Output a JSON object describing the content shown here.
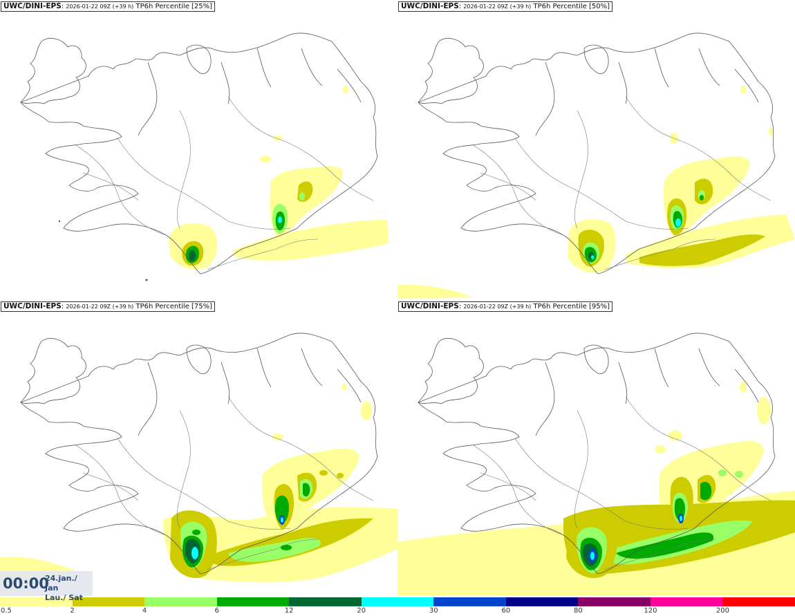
{
  "panels": [
    {
      "model": "UWC/DINI-EPS",
      "run": "2026-01-22 09Z (+39 h)",
      "field": "TP6h Percentile [25%]"
    },
    {
      "model": "UWC/DINI-EPS",
      "run": "2026-01-22 09Z (+39 h)",
      "field": "TP6h Percentile [50%]"
    },
    {
      "model": "UWC/DINI-EPS",
      "run": "2026-01-22 09Z (+39 h)",
      "field": "TP6h Percentile [75%]"
    },
    {
      "model": "UWC/DINI-EPS",
      "run": "2026-01-22 09Z (+39 h)",
      "field": "TP6h Percentile [95%]"
    }
  ],
  "valid_time": {
    "time": "00:00",
    "date_line1": "24.jan./ Jan",
    "date_line2": "Lau./ Sat"
  },
  "legend": {
    "colors": [
      "#ffff99",
      "#cccc00",
      "#99ff66",
      "#00aa00",
      "#006633",
      "#00ffff",
      "#0044cc",
      "#000088",
      "#880066",
      "#ff0099",
      "#ff0000"
    ],
    "labels": [
      "0.5",
      "2",
      "4",
      "6",
      "12",
      "20",
      "30",
      "60",
      "80",
      "120",
      "200"
    ]
  }
}
